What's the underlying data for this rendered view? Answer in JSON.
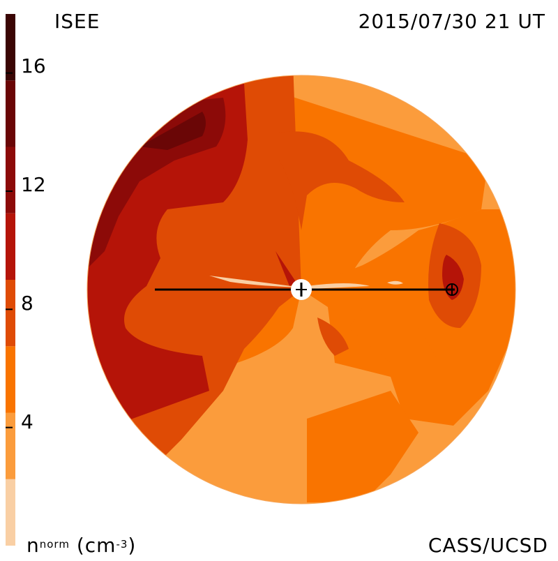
{
  "header": {
    "source_label": "ISEE",
    "timestamp": "2015/07/30 21 UT"
  },
  "footer": {
    "credit": "CASS/UCSD",
    "quantity_base": "n",
    "quantity_sup": "norm",
    "quantity_unit_pre": "(cm",
    "quantity_unit_exp": "-3",
    "quantity_unit_post": ")"
  },
  "colors": {
    "background": "#ffffff",
    "line": "#000000",
    "levels": [
      "#f9cfa4",
      "#fb9c3c",
      "#f97400",
      "#df4b05",
      "#b51408",
      "#8c0a08",
      "#6a0606",
      "#3a0504"
    ]
  },
  "chart_data": {
    "type": "heatmap",
    "title": "ISEE",
    "subtitle": "2015/07/30 21 UT",
    "projection": "polar ecliptic-plane density map",
    "colorbar": {
      "label": "n^norm (cm^-3)",
      "range": [
        0,
        18
      ],
      "level_step": 2,
      "ticks": [
        4,
        8,
        12,
        16
      ],
      "tick_labels": [
        "4",
        "8",
        "12",
        "16"
      ],
      "level_boundaries": [
        2,
        6,
        10,
        14
      ]
    },
    "features": [
      {
        "name": "Sun",
        "marker": "open-circle-with-cross"
      },
      {
        "name": "Earth",
        "marker": "circle-plus"
      },
      {
        "name": "Sun-Earth line",
        "marker": "horizontal-line"
      }
    ]
  }
}
